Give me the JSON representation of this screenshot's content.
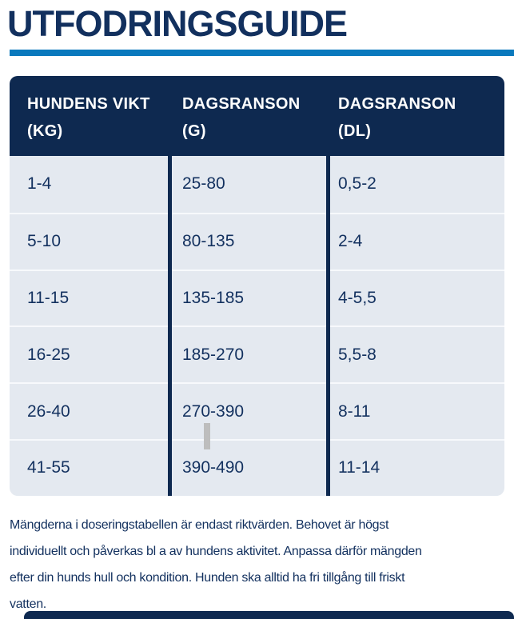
{
  "page": {
    "title": "UTFODRINGSGUIDE"
  },
  "colors": {
    "navy_text": "#12305e",
    "table_header_bg": "#0e2950",
    "title_rule_blue": "#0a79bd",
    "table_body_bg": "#e4e9f0",
    "row_divider": "#f7f9fc",
    "caret_gray": "#bdbdbd"
  },
  "table": {
    "headers": [
      {
        "line1": "HUNDENS VIKT",
        "line2": "(KG)"
      },
      {
        "line1": "DAGSRANSON",
        "line2": "(G)"
      },
      {
        "line1": "DAGSRANSON",
        "line2": "(DL)"
      }
    ],
    "rows": [
      [
        "1-4",
        "25-80",
        "0,5-2"
      ],
      [
        "5-10",
        "80-135",
        "2-4"
      ],
      [
        "11-15",
        "135-185",
        "4-5,5"
      ],
      [
        "16-25",
        "185-270",
        "5,5-8"
      ],
      [
        "26-40",
        "270-390",
        "8-11"
      ],
      [
        "41-55",
        "390-490",
        "11-14"
      ]
    ]
  },
  "footer": {
    "lines": [
      "Mängderna i doseringstabellen är endast riktvärden. Behovet är högst",
      "individuellt och påverkas bl a av hundens aktivitet. Anpassa därför mängden",
      "efter din hunds hull och kondition. Hunden ska alltid ha fri tillgång till friskt",
      "vatten."
    ]
  }
}
